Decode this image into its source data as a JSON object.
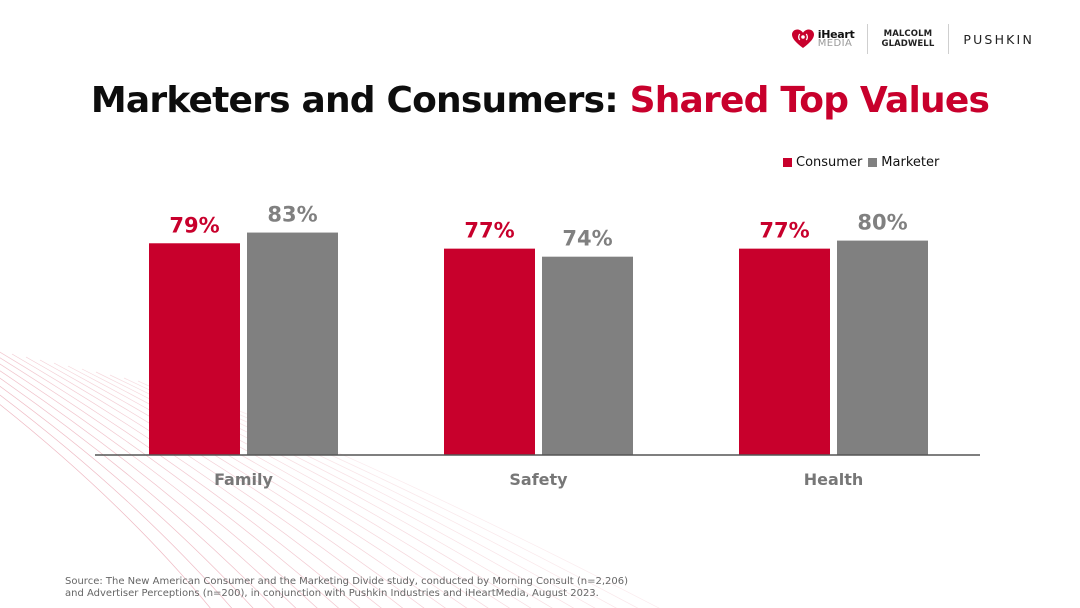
{
  "header": {
    "logos": {
      "iheart_line1": "iHeart",
      "iheart_line2": "MEDIA",
      "mg_line1": "MALCOLM",
      "mg_line2": "GLADWELL",
      "pushkin": "PUSHKIN"
    }
  },
  "title": {
    "part1": "Marketers and Consumers:",
    "part2": "Shared Top Values"
  },
  "colors": {
    "consumer": "#c8002c",
    "marketer": "#808080",
    "axis": "#555555",
    "category_label": "#777777",
    "title_accent": "#c8002c"
  },
  "chart_data": {
    "type": "bar",
    "title": "Marketers and Consumers: Shared Top Values",
    "xlabel": "",
    "ylabel": "",
    "categories": [
      "Family",
      "Safety",
      "Health"
    ],
    "series": [
      {
        "name": "Consumer",
        "values": [
          79,
          77,
          77
        ],
        "labels": [
          "79%",
          "77%",
          "77%"
        ]
      },
      {
        "name": "Marketer",
        "values": [
          83,
          74,
          80
        ],
        "labels": [
          "83%",
          "74%",
          "80%"
        ]
      }
    ],
    "ylim": [
      0,
      100
    ],
    "grid": false,
    "legend": "top-right",
    "value_format": "percent"
  },
  "legend": {
    "items": [
      "Consumer",
      "Marketer"
    ]
  },
  "footer": {
    "source_line1": "Source: The New American Consumer and the Marketing Divide study, conducted by Morning Consult (n=2,206)",
    "source_line2": "and Advertiser Perceptions (n=200), in conjunction with Pushkin Industries and iHeartMedia, August 2023."
  }
}
